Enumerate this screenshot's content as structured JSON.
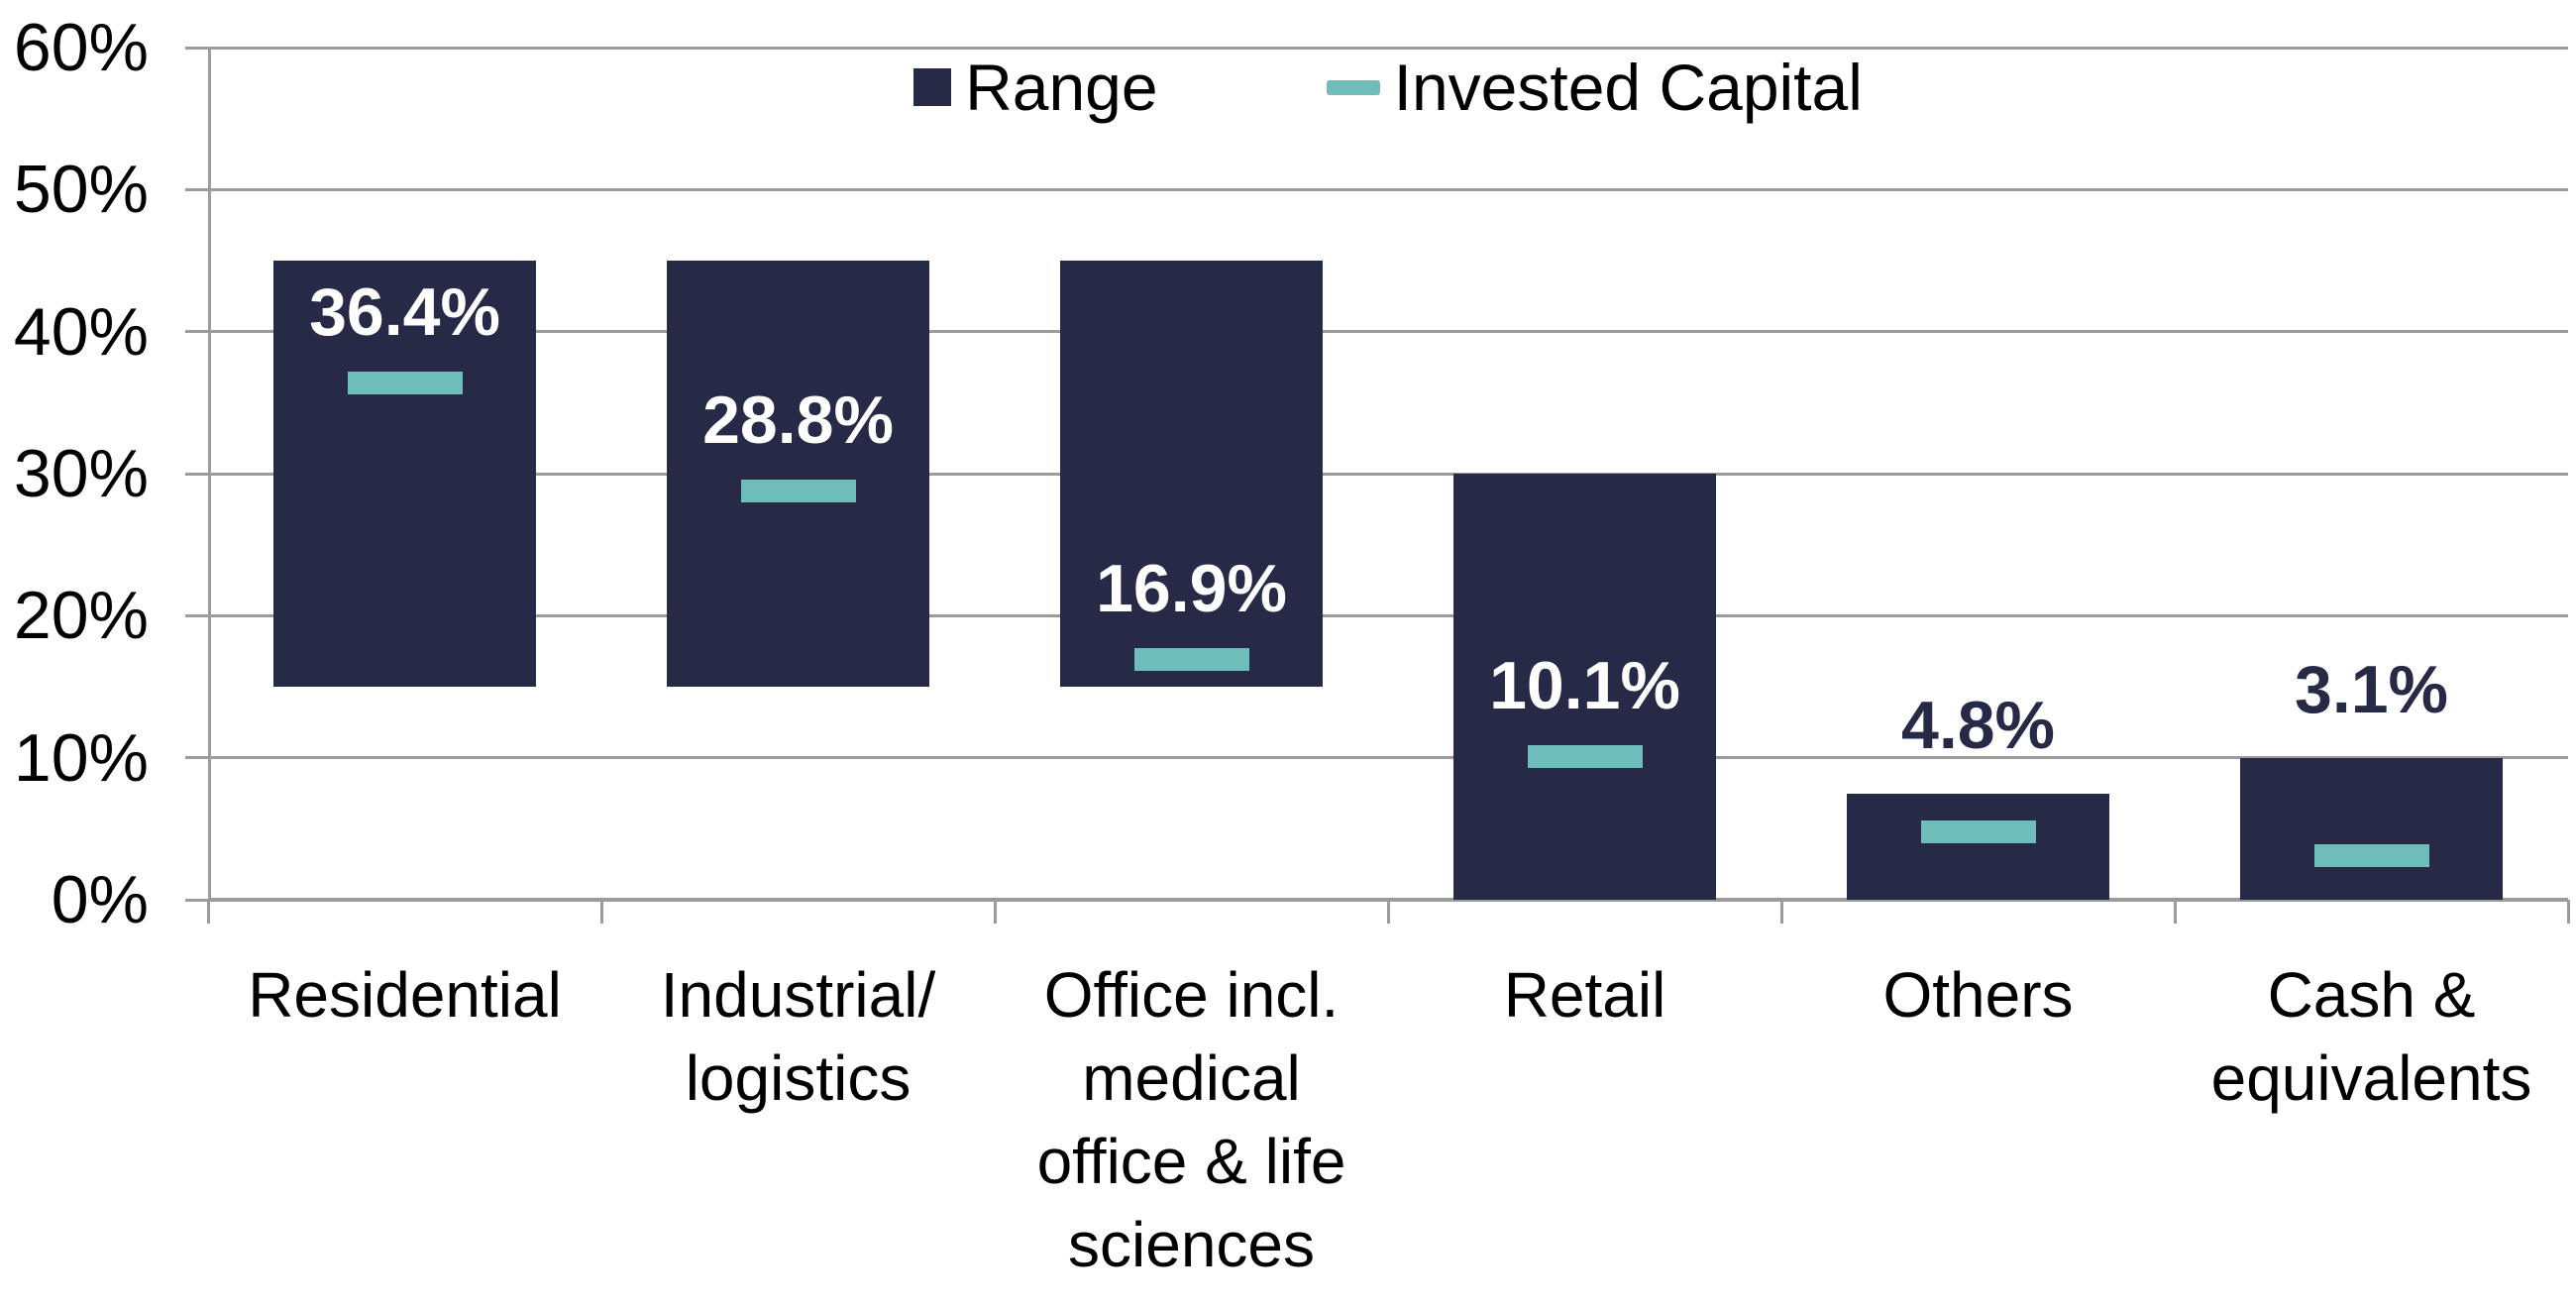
{
  "chart_data": {
    "type": "bar",
    "subtype": "floating-range-bars-with-markers",
    "title": "",
    "categories": [
      "Residential",
      "Industrial/\nlogistics",
      "Office incl.\nmedical\noffice & life\nsciences",
      "Retail",
      "Others",
      "Cash &\nequivalents"
    ],
    "series": [
      {
        "name": "Range",
        "type": "floating-bar",
        "color": "#272A47",
        "ranges": [
          [
            15,
            45
          ],
          [
            15,
            45
          ],
          [
            15,
            45
          ],
          [
            0,
            30
          ],
          [
            0,
            7.5
          ],
          [
            0,
            10
          ]
        ]
      },
      {
        "name": "Invested Capital",
        "type": "marker",
        "color": "#6FBDBA",
        "values": [
          36.4,
          28.8,
          16.9,
          10.1,
          4.8,
          3.1
        ]
      }
    ],
    "data_labels": [
      "36.4%",
      "28.8%",
      "16.9%",
      "10.1%",
      "4.8%",
      "3.1%"
    ],
    "data_label_positions": [
      "inside",
      "inside",
      "inside",
      "inside",
      "above",
      "above"
    ],
    "ylim": [
      0,
      60
    ],
    "ytick_step": 10,
    "ytick_labels": [
      "0%",
      "10%",
      "20%",
      "30%",
      "40%",
      "50%",
      "60%"
    ],
    "xlabel": "",
    "ylabel": "",
    "grid": "horizontal",
    "legend_position": "top-center",
    "colors": {
      "range_bar": "#272A47",
      "invested_marker": "#6FBDBA",
      "gridline": "#9B9B9B",
      "axis": "#9B9B9B",
      "label_inside": "#FFFFFF",
      "label_above": "#272A47",
      "axis_text": "#000000"
    }
  }
}
